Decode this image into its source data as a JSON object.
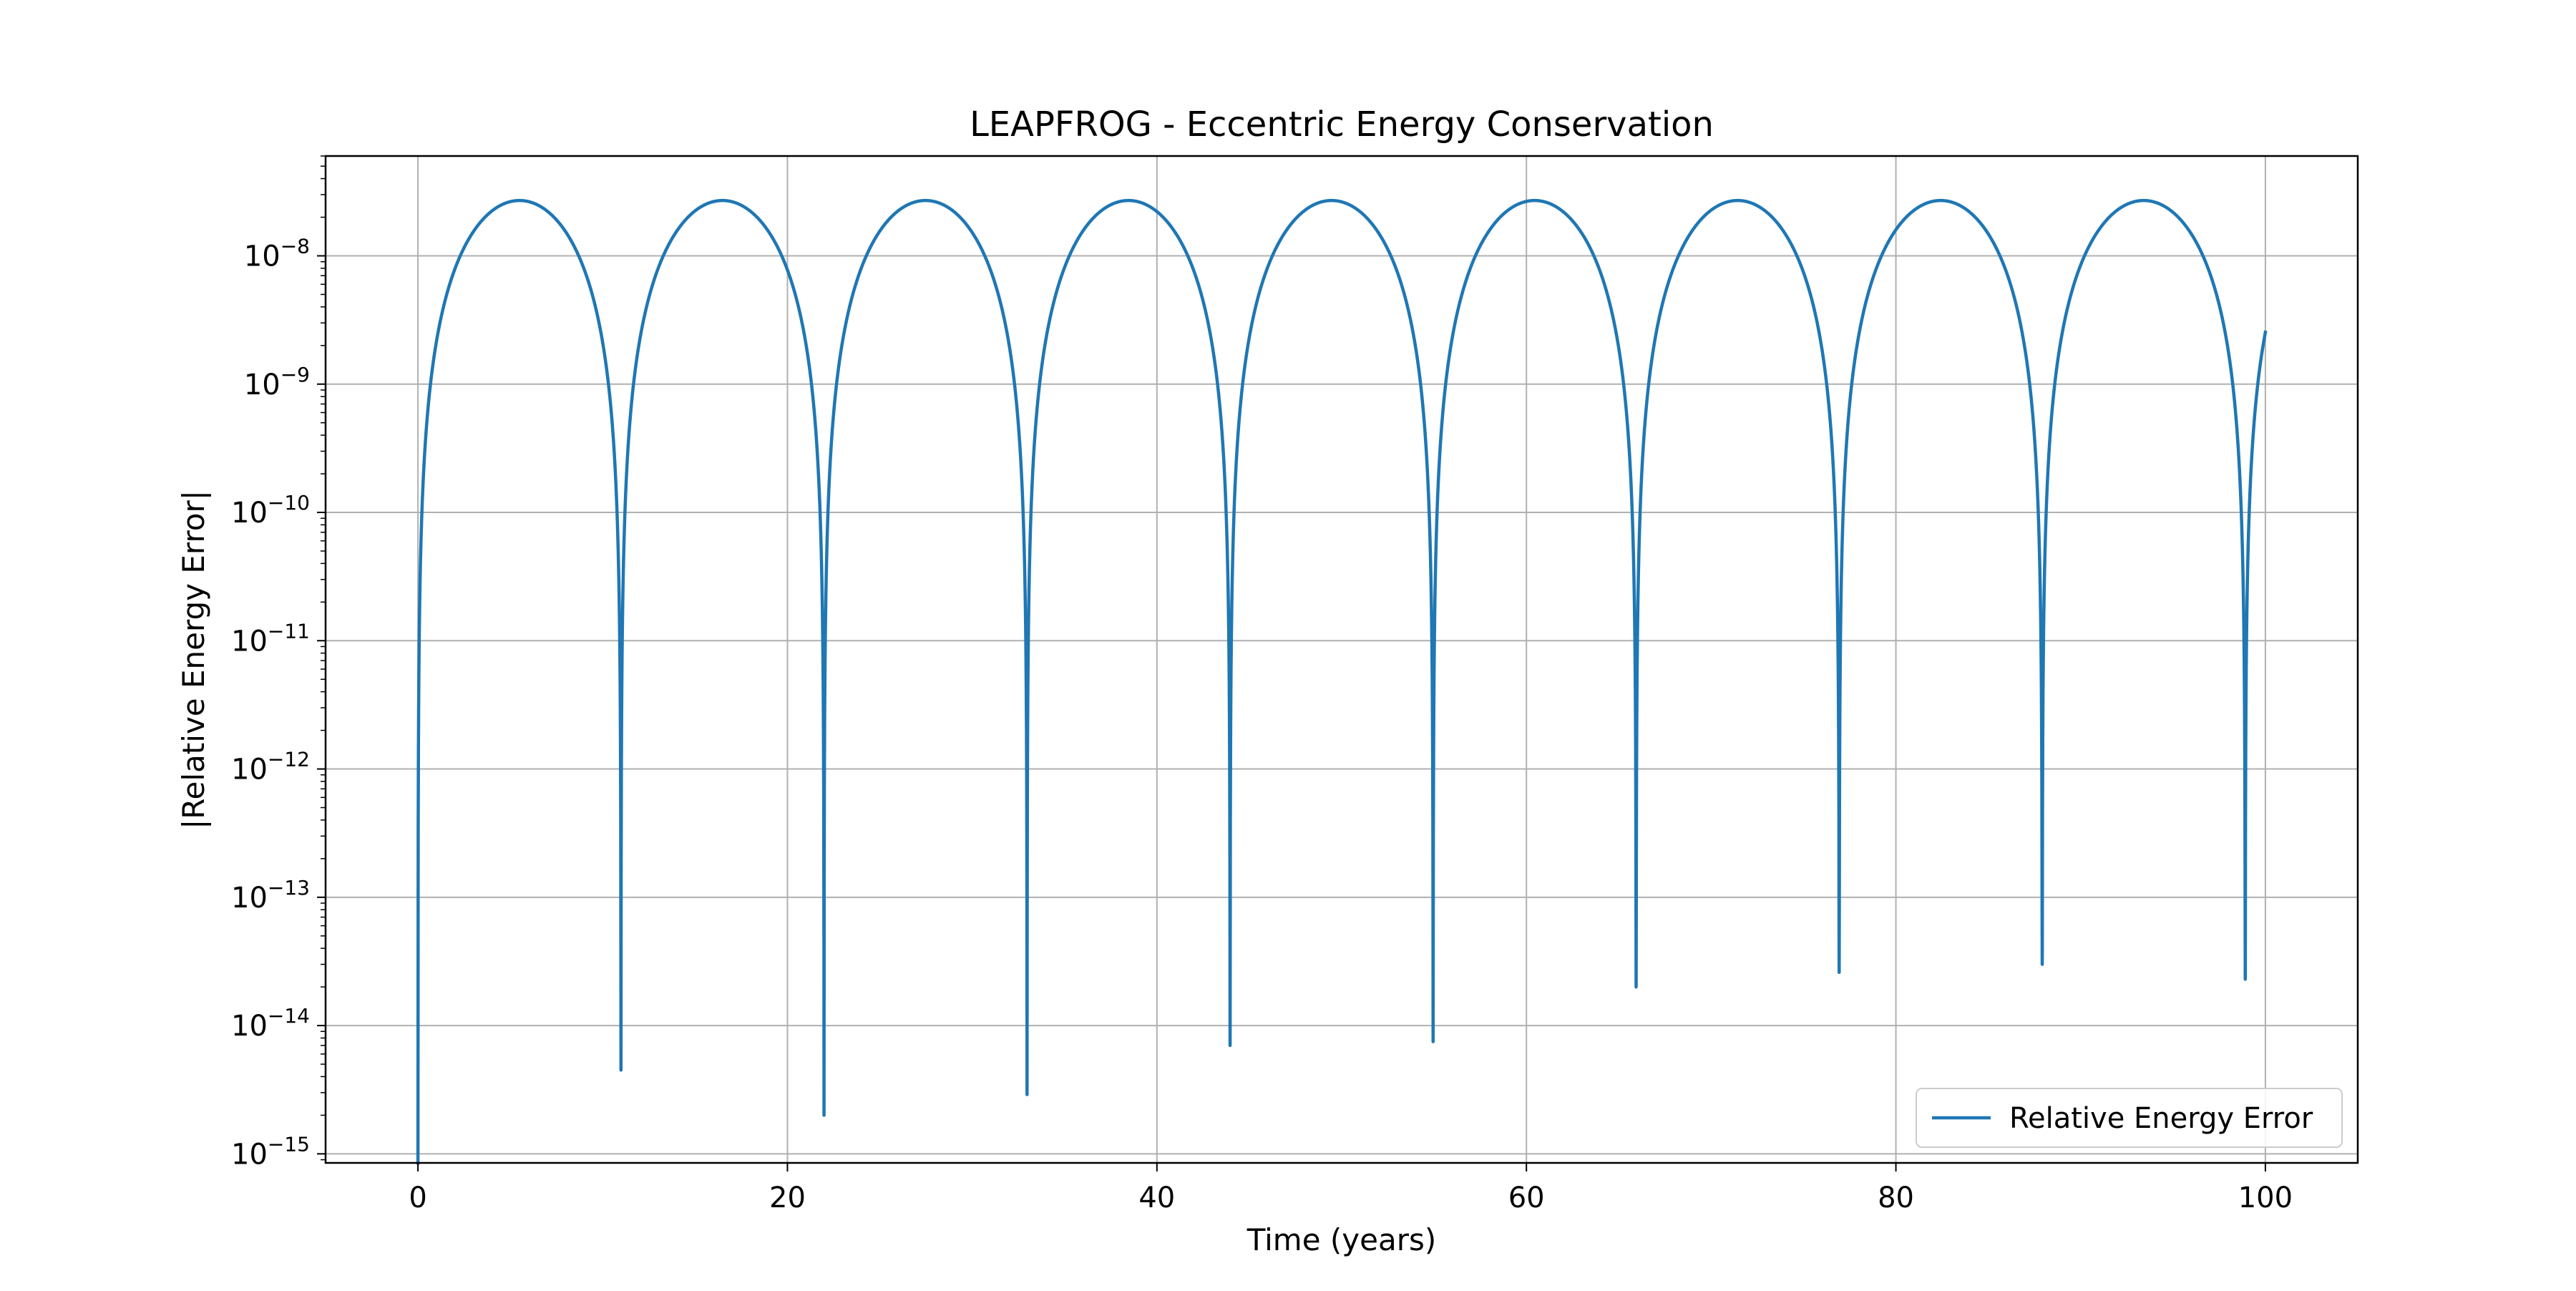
{
  "chart_data": {
    "type": "line",
    "title": "LEAPFROG - Eccentric Energy Conservation",
    "xlabel": "Time (years)",
    "ylabel": "|Relative Energy Error|",
    "x_scale": "linear",
    "y_scale": "log",
    "xlim": [
      -5,
      105
    ],
    "ylim": [
      8.5e-16,
      6e-08
    ],
    "x_ticks": [
      0,
      20,
      40,
      60,
      80,
      100
    ],
    "y_ticks": [
      {
        "exp": -15,
        "base": "10",
        "sup": "−15"
      },
      {
        "exp": -14,
        "base": "10",
        "sup": "−14"
      },
      {
        "exp": -13,
        "base": "10",
        "sup": "−13"
      },
      {
        "exp": -12,
        "base": "10",
        "sup": "−12"
      },
      {
        "exp": -11,
        "base": "10",
        "sup": "−11"
      },
      {
        "exp": -10,
        "base": "10",
        "sup": "−10"
      },
      {
        "exp": -9,
        "base": "10",
        "sup": "−9"
      },
      {
        "exp": -8,
        "base": "10",
        "sup": "−8"
      }
    ],
    "grid": true,
    "legend": {
      "position": "lower-right",
      "entries": [
        "Relative Energy Error"
      ]
    },
    "series": [
      {
        "name": "Relative Energy Error",
        "color": "#1f77b4",
        "period_years": 10.99,
        "peak_value": 2.7e-08,
        "end_value": 4.2e-09,
        "x_range": [
          0,
          100
        ],
        "minima": [
          {
            "x": 0.0,
            "y": 8.5e-16
          },
          {
            "x": 10.99,
            "y": 4.5e-15
          },
          {
            "x": 21.98,
            "y": 2e-15
          },
          {
            "x": 32.97,
            "y": 2.9e-15
          },
          {
            "x": 43.96,
            "y": 7e-15
          },
          {
            "x": 54.95,
            "y": 7.5e-15
          },
          {
            "x": 65.94,
            "y": 2e-14
          },
          {
            "x": 76.93,
            "y": 2.6e-14
          },
          {
            "x": 87.92,
            "y": 3e-14
          },
          {
            "x": 98.91,
            "y": 2.3e-14
          }
        ]
      }
    ]
  }
}
